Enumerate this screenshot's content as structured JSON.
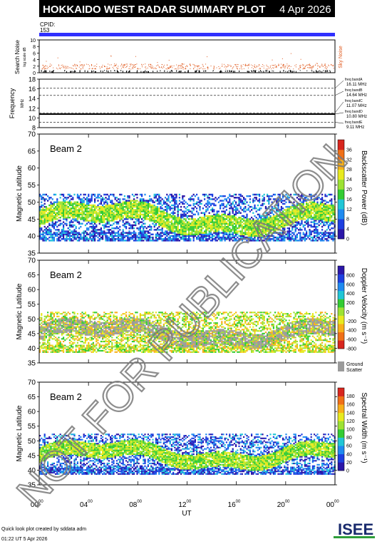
{
  "header": {
    "title": "HOKKAIDO WEST RADAR SUMMARY PLOT",
    "date": "4 Apr 2026",
    "cpid_label": "CPID:",
    "cpid_value": "153"
  },
  "watermark": "NOT FOR PUBLICATION",
  "footer": {
    "line1": "Quick look plot created by sddata adm",
    "line2": "01:22 UT  5 Apr 2026"
  },
  "logo": "ISEE",
  "colors": {
    "cpid_bar": "#3030ff",
    "sky_noise": "#e05a1e",
    "title_bg": "#000000"
  },
  "chart_data": [
    {
      "type": "scatter",
      "name_panel": "noise",
      "ylabel": "Search Noise",
      "ylabel_sub": "log scale dB",
      "legend": "Sky Noise",
      "ylim": [
        0,
        10
      ],
      "yticks": [
        "0",
        "2",
        "4",
        "6",
        "8",
        "10"
      ],
      "typical_level": 2
    },
    {
      "type": "line",
      "name_panel": "frequency",
      "ylabel": "Frequency",
      "ylabel_unit": "MHz",
      "ylim": [
        8,
        18
      ],
      "yticks": [
        "8",
        "10",
        "12",
        "14",
        "16",
        "18"
      ],
      "bands": [
        {
          "label": "freq bandA",
          "value_label": "16.11 MHz",
          "value": 16.11
        },
        {
          "label": "freq bandB",
          "value_label": "14.64 MHz",
          "value": 14.64
        },
        {
          "label": "freq bandC",
          "value_label": "11.07 MHz",
          "value": 11.07
        },
        {
          "label": "freq bandD",
          "value_label": "10.80 MHz",
          "value": 10.8
        },
        {
          "label": "freq bandE",
          "value_label": "9.11 MHz",
          "value": 9.11
        }
      ]
    },
    {
      "type": "heatmap",
      "name_panel": "power",
      "beam_label": "Beam  2",
      "ylabel": "Magnetic Latitude",
      "ylim": [
        35,
        70
      ],
      "yticks": [
        "35",
        "40",
        "45",
        "50",
        "55",
        "60",
        "65",
        "70"
      ],
      "scale_label": "Backscatter Power (dB)",
      "scale_ticks": [
        "0",
        "4",
        "8",
        "12",
        "16",
        "20",
        "24",
        "28",
        "32",
        "36"
      ]
    },
    {
      "type": "heatmap",
      "name_panel": "velocity",
      "beam_label": "Beam  2",
      "ylabel": "Magnetic Latitude",
      "ylim": [
        35,
        70
      ],
      "yticks": [
        "35",
        "40",
        "45",
        "50",
        "55",
        "60",
        "65",
        "70"
      ],
      "scale_label": "Doppler Velocity (m s⁻¹)",
      "scale_ticks": [
        "-800",
        "-600",
        "-400",
        "-200",
        "0",
        "200",
        "400",
        "600",
        "800"
      ],
      "ground_label1": "Ground",
      "ground_label2": "Scatter"
    },
    {
      "type": "heatmap",
      "name_panel": "width",
      "beam_label": "Beam  2",
      "ylabel": "Magnetic Latitude",
      "ylim": [
        35,
        70
      ],
      "yticks": [
        "35",
        "40",
        "45",
        "50",
        "55",
        "60",
        "65",
        "70"
      ],
      "scale_label": "Spectral Width (m s⁻¹)",
      "scale_ticks": [
        "0",
        "20",
        "40",
        "60",
        "80",
        "100",
        "120",
        "140",
        "160",
        "180"
      ],
      "xlabel": "UT",
      "xticks": [
        {
          "h": "00",
          "m": "00"
        },
        {
          "h": "04",
          "m": "00"
        },
        {
          "h": "08",
          "m": "00"
        },
        {
          "h": "12",
          "m": "00"
        },
        {
          "h": "16",
          "m": "00"
        },
        {
          "h": "20",
          "m": "00"
        },
        {
          "h": "00",
          "m": "00"
        }
      ]
    }
  ]
}
